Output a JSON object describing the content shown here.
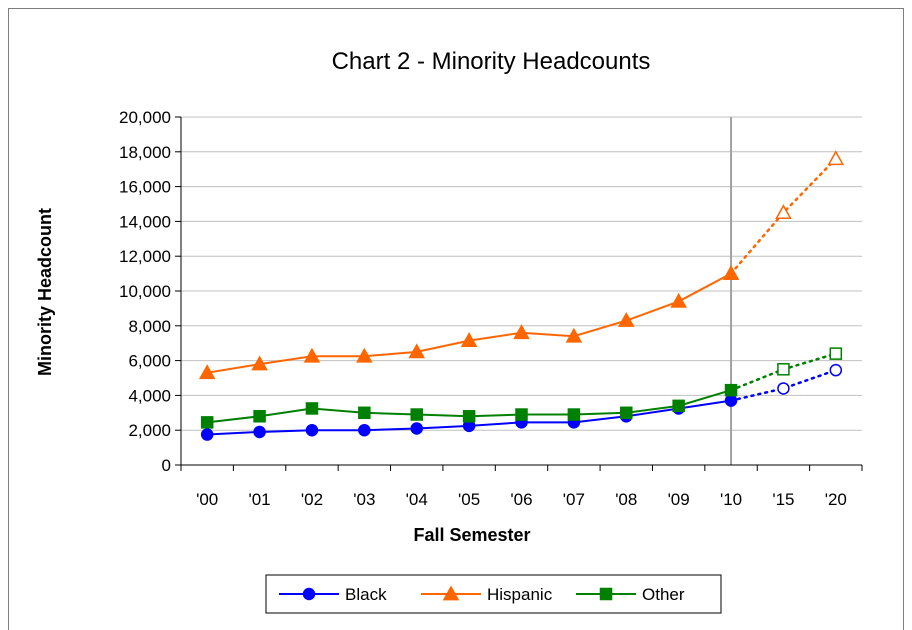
{
  "chart_data": {
    "type": "line",
    "title": "Chart 2 - Minority Headcounts",
    "xlabel": "Fall Semester",
    "ylabel": "Minority Headcount",
    "categories": [
      "'00",
      "'01",
      "'02",
      "'03",
      "'04",
      "'05",
      "'06",
      "'07",
      "'08",
      "'09",
      "'10",
      "'15",
      "'20"
    ],
    "yticks": [
      "0",
      "2,000",
      "4,000",
      "6,000",
      "8,000",
      "10,000",
      "12,000",
      "14,000",
      "16,000",
      "18,000",
      "20,000"
    ],
    "ylim": [
      0,
      20000
    ],
    "grid": true,
    "legend_position": "bottom",
    "actual_through_index": 10,
    "series": [
      {
        "name": "Black",
        "color": "#0000ff",
        "marker": "circle",
        "values": [
          1750,
          1900,
          2000,
          2000,
          2100,
          2250,
          2450,
          2450,
          2800,
          3250,
          3700,
          4400,
          5450
        ]
      },
      {
        "name": "Hispanic",
        "color": "#ff6600",
        "marker": "triangle",
        "values": [
          5300,
          5800,
          6250,
          6250,
          6500,
          7150,
          7600,
          7400,
          8300,
          9400,
          11000,
          14500,
          17600
        ]
      },
      {
        "name": "Other",
        "color": "#008000",
        "marker": "square",
        "values": [
          2450,
          2800,
          3250,
          3000,
          2900,
          2800,
          2900,
          2900,
          3000,
          3400,
          4300,
          5500,
          6400
        ]
      }
    ]
  }
}
